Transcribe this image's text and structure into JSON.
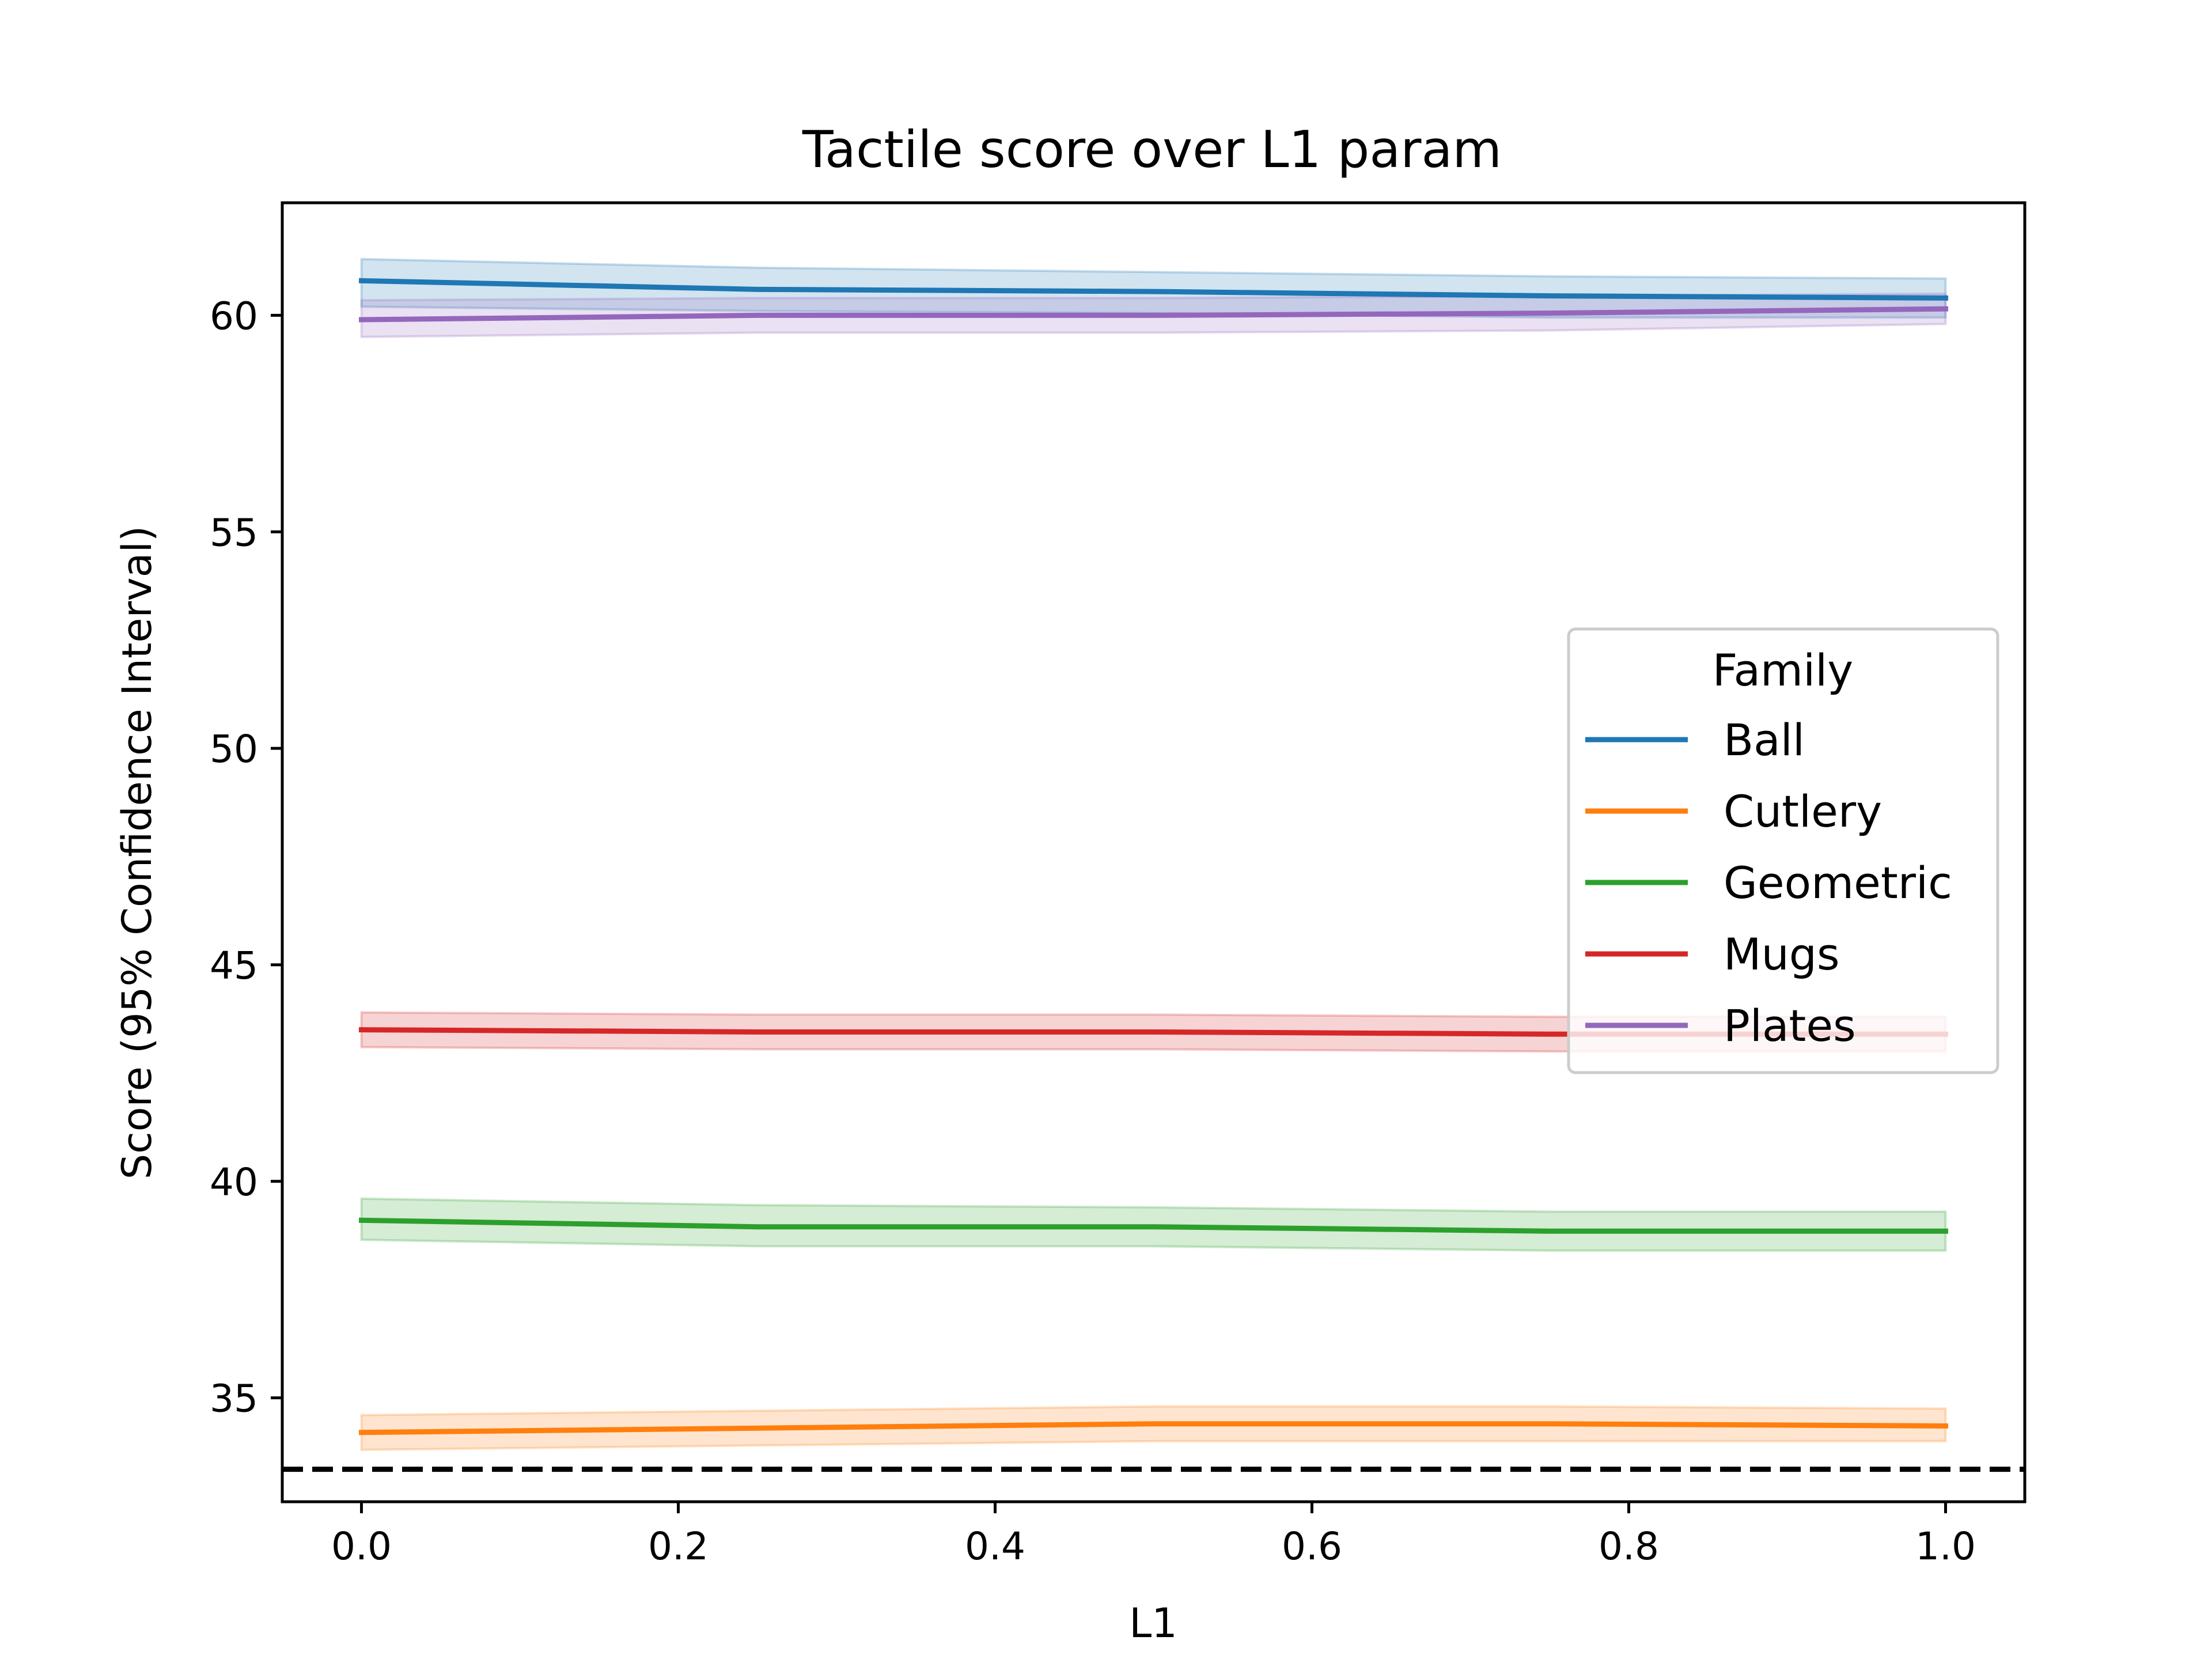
{
  "chart_data": {
    "type": "line",
    "title": "Tactile score over L1 param",
    "xlabel": "L1",
    "ylabel": "Score (95% Confidence Interval)",
    "xlim": [
      -0.05,
      1.05
    ],
    "ylim": [
      32.6,
      62.6
    ],
    "xticks": [
      0.0,
      0.2,
      0.4,
      0.6,
      0.8,
      1.0
    ],
    "xtick_labels": [
      "0.0",
      "0.2",
      "0.4",
      "0.6",
      "0.8",
      "1.0"
    ],
    "yticks": [
      35,
      40,
      45,
      50,
      55,
      60
    ],
    "ytick_labels": [
      "35",
      "40",
      "45",
      "50",
      "55",
      "60"
    ],
    "x": [
      0.0,
      0.25,
      0.5,
      0.75,
      1.0
    ],
    "reference_line": {
      "y": 33.35,
      "style": "dashed",
      "color": "#000000"
    },
    "legend": {
      "title": "Family",
      "position": "center-right"
    },
    "grid": false,
    "series": [
      {
        "name": "Ball",
        "color": "#1f77b4",
        "values": [
          60.8,
          60.6,
          60.55,
          60.45,
          60.4
        ],
        "lower": [
          60.2,
          60.1,
          60.05,
          59.95,
          59.95
        ],
        "upper": [
          61.3,
          61.1,
          61.0,
          60.9,
          60.85
        ]
      },
      {
        "name": "Cutlery",
        "color": "#ff7f0e",
        "values": [
          34.2,
          34.3,
          34.4,
          34.4,
          34.35
        ],
        "lower": [
          33.8,
          33.9,
          34.0,
          34.0,
          34.0
        ],
        "upper": [
          34.6,
          34.7,
          34.8,
          34.8,
          34.75
        ]
      },
      {
        "name": "Geometric",
        "color": "#2ca02c",
        "values": [
          39.1,
          38.95,
          38.95,
          38.85,
          38.85
        ],
        "lower": [
          38.65,
          38.5,
          38.5,
          38.4,
          38.4
        ],
        "upper": [
          39.6,
          39.45,
          39.4,
          39.3,
          39.3
        ]
      },
      {
        "name": "Mugs",
        "color": "#d62728",
        "values": [
          43.5,
          43.45,
          43.45,
          43.4,
          43.4
        ],
        "lower": [
          43.1,
          43.05,
          43.05,
          43.0,
          43.0
        ],
        "upper": [
          43.9,
          43.85,
          43.85,
          43.8,
          43.8
        ]
      },
      {
        "name": "Plates",
        "color": "#9467bd",
        "values": [
          59.9,
          60.0,
          60.0,
          60.05,
          60.15
        ],
        "lower": [
          59.5,
          59.6,
          59.6,
          59.65,
          59.8
        ],
        "upper": [
          60.35,
          60.4,
          60.4,
          60.45,
          60.5
        ]
      }
    ]
  }
}
